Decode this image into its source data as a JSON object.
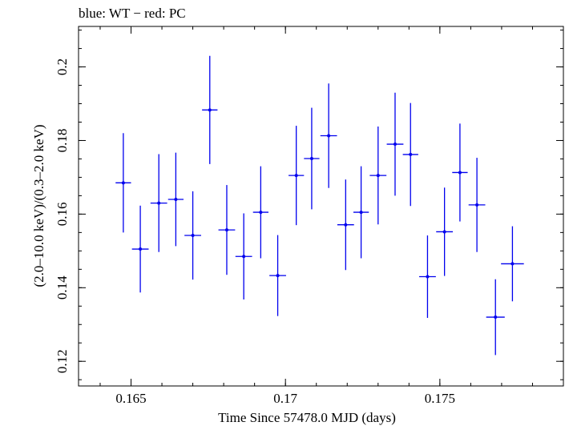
{
  "header_text": "blue: WT − red: PC",
  "chart_data": {
    "type": "scatter",
    "title": "blue: WT − red: PC",
    "xlabel": "Time Since 57478.0 MJD (days)",
    "ylabel": "(2.0–10.0 keV)/(0.3–2.0 keV)",
    "xlim": [
      0.1633,
      0.179
    ],
    "ylim": [
      0.1133,
      0.211
    ],
    "xticks": [
      0.165,
      0.17,
      0.175
    ],
    "xtick_labels": [
      "0.165",
      "0.17",
      "0.175"
    ],
    "yticks": [
      0.12,
      0.14,
      0.16,
      0.18,
      0.2
    ],
    "ytick_labels": [
      "0.12",
      "0.14",
      "0.16",
      "0.18",
      "0.2"
    ],
    "grid": false,
    "series": [
      {
        "name": "WT",
        "color": "#0000ee",
        "points": [
          {
            "x": 0.16475,
            "y": 0.1685,
            "xerr": 0.00025,
            "yerr": 0.0135
          },
          {
            "x": 0.1653,
            "y": 0.1505,
            "xerr": 0.00027,
            "yerr": 0.0118
          },
          {
            "x": 0.1659,
            "y": 0.163,
            "xerr": 0.00027,
            "yerr": 0.0133
          },
          {
            "x": 0.16645,
            "y": 0.164,
            "xerr": 0.00025,
            "yerr": 0.0127
          },
          {
            "x": 0.167,
            "y": 0.1542,
            "xerr": 0.00027,
            "yerr": 0.012
          },
          {
            "x": 0.16755,
            "y": 0.1883,
            "xerr": 0.00025,
            "yerr": 0.0147
          },
          {
            "x": 0.1681,
            "y": 0.1557,
            "xerr": 0.00027,
            "yerr": 0.0122
          },
          {
            "x": 0.16865,
            "y": 0.1485,
            "xerr": 0.00027,
            "yerr": 0.0117
          },
          {
            "x": 0.1692,
            "y": 0.1605,
            "xerr": 0.00025,
            "yerr": 0.0125
          },
          {
            "x": 0.16975,
            "y": 0.1433,
            "xerr": 0.00027,
            "yerr": 0.011
          },
          {
            "x": 0.17035,
            "y": 0.1705,
            "xerr": 0.00025,
            "yerr": 0.0135
          },
          {
            "x": 0.17085,
            "y": 0.1751,
            "xerr": 0.00025,
            "yerr": 0.0138
          },
          {
            "x": 0.1714,
            "y": 0.1813,
            "xerr": 0.00027,
            "yerr": 0.0142
          },
          {
            "x": 0.17195,
            "y": 0.1571,
            "xerr": 0.00027,
            "yerr": 0.0123
          },
          {
            "x": 0.17245,
            "y": 0.1605,
            "xerr": 0.00025,
            "yerr": 0.0125
          },
          {
            "x": 0.173,
            "y": 0.1705,
            "xerr": 0.00027,
            "yerr": 0.0133
          },
          {
            "x": 0.17355,
            "y": 0.179,
            "xerr": 0.00027,
            "yerr": 0.014
          },
          {
            "x": 0.17405,
            "y": 0.1762,
            "xerr": 0.00025,
            "yerr": 0.014
          },
          {
            "x": 0.1746,
            "y": 0.143,
            "xerr": 0.00027,
            "yerr": 0.0112
          },
          {
            "x": 0.17515,
            "y": 0.1552,
            "xerr": 0.00027,
            "yerr": 0.012
          },
          {
            "x": 0.17565,
            "y": 0.1713,
            "xerr": 0.00025,
            "yerr": 0.0133
          },
          {
            "x": 0.1762,
            "y": 0.1625,
            "xerr": 0.00027,
            "yerr": 0.0128
          },
          {
            "x": 0.1768,
            "y": 0.132,
            "xerr": 0.0003,
            "yerr": 0.0103
          },
          {
            "x": 0.17735,
            "y": 0.1465,
            "xerr": 0.00037,
            "yerr": 0.0102
          }
        ]
      }
    ]
  }
}
